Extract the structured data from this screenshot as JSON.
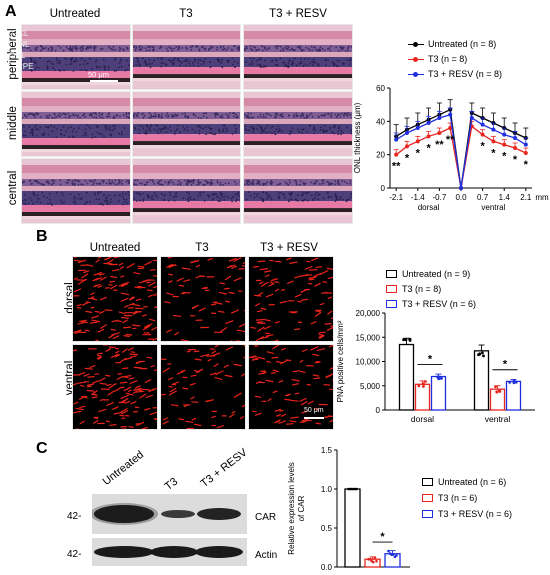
{
  "panel_a": {
    "letter": "A",
    "groups": [
      "Untreated",
      "T3",
      "T3 + RESV"
    ],
    "rows": [
      "peripheral",
      "middle",
      "central"
    ],
    "layers": [
      "GCL",
      "INL",
      "ONL",
      "RPE"
    ],
    "scale_bar": "50 μm",
    "legend": [
      {
        "label": "Untreated (n = 8)",
        "color": "#000000"
      },
      {
        "label": "T3 (n = 8)",
        "color": "#e8251f"
      },
      {
        "label": "T3 + RESV (n = 8)",
        "color": "#1f2fe0"
      }
    ]
  },
  "panel_b": {
    "letter": "B",
    "groups": [
      "Untreated",
      "T3",
      "T3 + RESV"
    ],
    "rows": [
      "dorsal",
      "ventral"
    ],
    "scale_bar": "50 μm",
    "legend": [
      {
        "label": "Untreated (n = 9)",
        "color": "#000000"
      },
      {
        "label": "T3 (n = 8)",
        "color": "#e8251f"
      },
      {
        "label": "T3 + RESV (n = 6)",
        "color": "#1f2fe0"
      }
    ]
  },
  "panel_c": {
    "letter": "C",
    "lanes": [
      "Untreated",
      "T3",
      "T3 + RESV"
    ],
    "bands": [
      {
        "marker": "42-",
        "name": "CAR"
      },
      {
        "marker": "42-",
        "name": "Actin"
      }
    ],
    "legend": [
      {
        "label": "Untreated (n = 6)",
        "color": "#000000"
      },
      {
        "label": "T3 (n = 6)",
        "color": "#e8251f"
      },
      {
        "label": "T3 + RESV (n = 6)",
        "color": "#1f2fe0"
      }
    ]
  },
  "chart_data": [
    {
      "type": "line",
      "ylabel": "ONL thickness (μm)",
      "xlabel_unit": "mm",
      "x_tick_labels": [
        "-2.1",
        "-1.4",
        "-0.7",
        "0.0",
        "0.7",
        "1.4",
        "2.1"
      ],
      "x_region_labels": [
        "dorsal",
        "ventral"
      ],
      "x": [
        -2.1,
        -1.75,
        -1.4,
        -1.05,
        -0.7,
        -0.35,
        0.0,
        0.35,
        0.7,
        1.05,
        1.4,
        1.75,
        2.1
      ],
      "ylim": [
        0,
        60
      ],
      "yticks": [
        "0",
        "20",
        "40",
        "60"
      ],
      "series": [
        {
          "name": "Untreated (n = 8)",
          "color": "#000000",
          "values": [
            31,
            35,
            38,
            41,
            44,
            47,
            0,
            45,
            42,
            39,
            36,
            33,
            30
          ],
          "err": [
            7,
            7,
            7,
            7,
            7,
            6,
            0,
            6,
            6,
            6,
            6,
            6,
            6
          ]
        },
        {
          "name": "T3 (n = 8)",
          "color": "#e8251f",
          "values": [
            20,
            25,
            28,
            31,
            33,
            36,
            0,
            37,
            32,
            28,
            26,
            24,
            21
          ],
          "err": [
            3,
            3,
            3,
            3,
            3,
            3,
            0,
            3,
            3,
            3,
            3,
            3,
            3
          ]
        },
        {
          "name": "T3 + RESV (n = 8)",
          "color": "#1f2fe0",
          "values": [
            29,
            33,
            36,
            39,
            42,
            44,
            0,
            42,
            38,
            35,
            32,
            30,
            26
          ],
          "err": [
            4,
            4,
            4,
            4,
            4,
            4,
            0,
            4,
            4,
            4,
            4,
            4,
            4
          ]
        }
      ],
      "annotations": [
        {
          "x": -2.1,
          "text": "**"
        },
        {
          "x": -1.75,
          "text": "*"
        },
        {
          "x": -1.4,
          "text": "*"
        },
        {
          "x": -1.05,
          "text": "*"
        },
        {
          "x": -0.7,
          "text": "**"
        },
        {
          "x": -0.35,
          "text": "**"
        },
        {
          "x": 0.7,
          "text": "*"
        },
        {
          "x": 1.05,
          "text": "*"
        },
        {
          "x": 1.4,
          "text": "*"
        },
        {
          "x": 1.75,
          "text": "*"
        },
        {
          "x": 2.1,
          "text": "*"
        }
      ]
    },
    {
      "type": "bar",
      "ylabel": "PNA positive cells/mm²",
      "categories": [
        "dorsal",
        "ventral"
      ],
      "ylim": [
        0,
        20000
      ],
      "yticks": [
        "0",
        "5,000",
        "10,000",
        "15,000",
        "20,000"
      ],
      "series": [
        {
          "name": "Untreated (n = 9)",
          "color": "#000000",
          "values": [
            13500,
            12200
          ],
          "err": [
            1300,
            1200
          ]
        },
        {
          "name": "T3 (n = 8)",
          "color": "#e8251f",
          "values": [
            5300,
            4300
          ],
          "err": [
            700,
            700
          ]
        },
        {
          "name": "T3 + RESV (n = 6)",
          "color": "#1f2fe0",
          "values": [
            6900,
            5900
          ],
          "err": [
            500,
            400
          ]
        }
      ],
      "annotations": [
        {
          "category": "dorsal",
          "text": "*"
        },
        {
          "category": "ventral",
          "text": "*"
        }
      ]
    },
    {
      "type": "bar",
      "ylabel": "Relative expression levels of CAR",
      "categories": [
        ""
      ],
      "ylim": [
        0,
        1.5
      ],
      "yticks": [
        "0.0",
        "0.5",
        "1.0",
        "1.5"
      ],
      "series": [
        {
          "name": "Untreated (n = 6)",
          "color": "#000000",
          "values": [
            1.0
          ],
          "err": [
            0
          ]
        },
        {
          "name": "T3 (n = 6)",
          "color": "#e8251f",
          "values": [
            0.1
          ],
          "err": [
            0.03
          ]
        },
        {
          "name": "T3 + RESV (n = 6)",
          "color": "#1f2fe0",
          "values": [
            0.17
          ],
          "err": [
            0.04
          ]
        }
      ],
      "annotations": [
        {
          "text": "*"
        }
      ]
    }
  ]
}
